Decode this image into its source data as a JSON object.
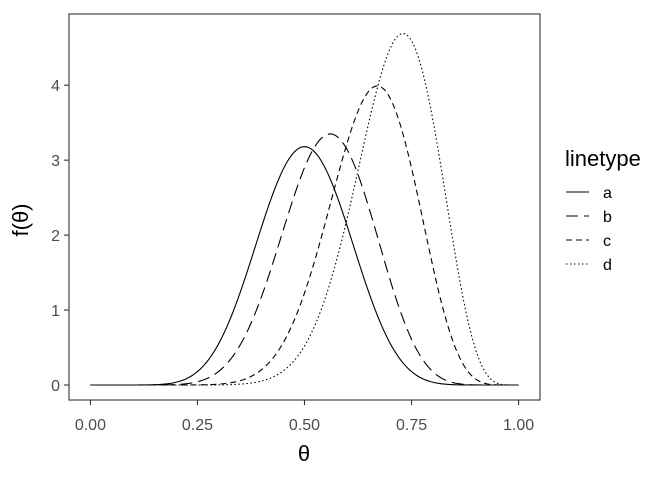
{
  "chart_data": {
    "type": "line",
    "xlabel": "θ",
    "ylabel": "f(θ)",
    "xlim": [
      -0.05,
      1.05
    ],
    "ylim": [
      -0.2,
      4.95
    ],
    "x_ticks": [
      0,
      0.25,
      0.5,
      0.75,
      1
    ],
    "x_tick_labels": [
      "0.00",
      "0.25",
      "0.50",
      "0.75",
      "1.00"
    ],
    "y_ticks": [
      0,
      1,
      2,
      3,
      4
    ],
    "y_tick_labels": [
      "0",
      "1",
      "2",
      "3",
      "4"
    ],
    "grid": false,
    "legend": {
      "title": "linetype",
      "position": "right"
    },
    "line_color": "#000000",
    "series": [
      {
        "name": "a",
        "linetype": "solid",
        "peak": {
          "x": 0.5,
          "y": 3.18
        },
        "x": [
          0,
          0.1,
          0.2,
          0.3,
          0.4,
          0.5,
          0.6,
          0.7,
          0.8,
          0.9,
          1
        ],
        "y": [
          0,
          0.06,
          0.62,
          1.83,
          2.91,
          3.18,
          2.59,
          1.52,
          0.57,
          0.08,
          0
        ]
      },
      {
        "name": "b",
        "linetype": "longdash",
        "peak": {
          "x": 0.56,
          "y": 3.35
        },
        "x": [
          0,
          0.1,
          0.2,
          0.3,
          0.4,
          0.5,
          0.6,
          0.7,
          0.8,
          0.9,
          1
        ],
        "y": [
          0,
          0.02,
          0.29,
          1.11,
          2.32,
          3.21,
          3.21,
          2.26,
          1.01,
          0.19,
          0
        ]
      },
      {
        "name": "c",
        "linetype": "dashed",
        "peak": {
          "x": 0.67,
          "y": 3.99
        },
        "x": [
          0,
          0.1,
          0.2,
          0.3,
          0.4,
          0.5,
          0.6,
          0.7,
          0.8,
          0.9,
          1
        ],
        "y": [
          0,
          0,
          0.03,
          0.25,
          0.94,
          2.2,
          3.58,
          3.96,
          2.68,
          0.77,
          0
        ]
      },
      {
        "name": "d",
        "linetype": "dotted",
        "peak": {
          "x": 0.73,
          "y": 4.69
        },
        "x": [
          0,
          0.1,
          0.2,
          0.3,
          0.4,
          0.5,
          0.6,
          0.7,
          0.8,
          0.9,
          1
        ],
        "y": [
          0,
          0,
          0,
          0.02,
          0.17,
          0.86,
          2.65,
          4.6,
          3.82,
          0.84,
          0
        ]
      }
    ]
  }
}
